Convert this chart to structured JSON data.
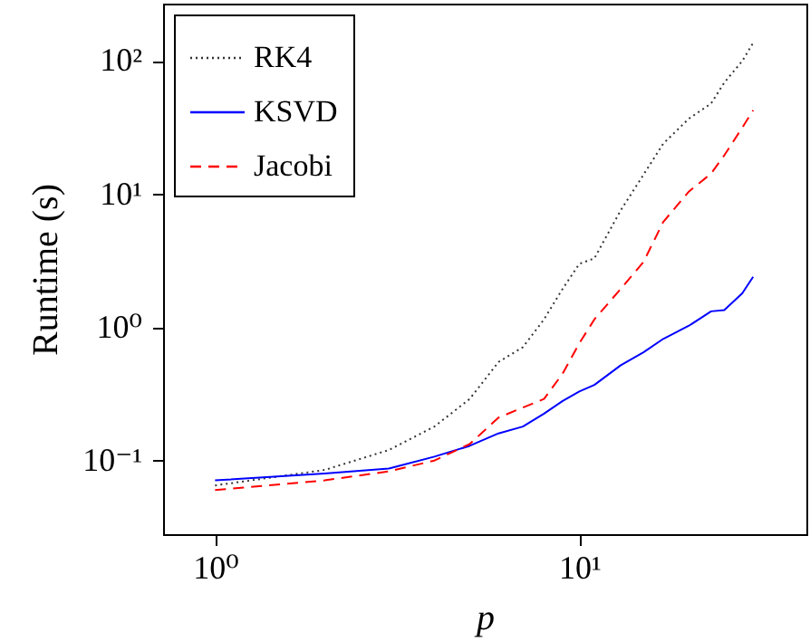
{
  "chart_data": {
    "type": "line",
    "xlabel": "p",
    "ylabel": "Runtime (s)",
    "log": "xy",
    "grid": false,
    "legend": "top left",
    "marker": "none",
    "xlim": [
      0.72,
      42
    ],
    "ylim": [
      0.028,
      270
    ],
    "xticks": [
      {
        "value": 1,
        "label": "10⁰"
      },
      {
        "value": 10,
        "label": "10¹"
      }
    ],
    "yticks": [
      {
        "value": 0.1,
        "label": "10⁻¹"
      },
      {
        "value": 1,
        "label": "10⁰"
      },
      {
        "value": 10,
        "label": "10¹"
      },
      {
        "value": 100,
        "label": "10²"
      }
    ],
    "x": [
      1,
      2,
      3,
      4,
      5,
      6,
      7,
      8,
      9,
      10,
      11,
      13,
      15,
      17,
      20,
      23,
      25,
      28,
      30
    ],
    "series": [
      {
        "name": "RK4",
        "color": "#333333",
        "line_style": "dotted",
        "values": [
          0.065,
          0.085,
          0.12,
          0.18,
          0.29,
          0.55,
          0.71,
          1.15,
          1.95,
          3.0,
          3.3,
          7.6,
          14,
          24,
          37,
          48,
          69,
          100,
          137
        ]
      },
      {
        "name": "KSVD",
        "color": "#0000ff",
        "line_style": "solid",
        "values": [
          0.071,
          0.08,
          0.087,
          0.107,
          0.129,
          0.16,
          0.18,
          0.225,
          0.28,
          0.33,
          0.37,
          0.52,
          0.65,
          0.82,
          1.03,
          1.32,
          1.35,
          1.8,
          2.4
        ]
      },
      {
        "name": "Jacobi",
        "color": "#ff0000",
        "line_style": "dashed",
        "values": [
          0.06,
          0.071,
          0.083,
          0.1,
          0.133,
          0.21,
          0.25,
          0.29,
          0.45,
          0.76,
          1.15,
          1.95,
          3.1,
          6.2,
          10.5,
          14.3,
          19.6,
          31.6,
          42.7
        ]
      }
    ]
  }
}
